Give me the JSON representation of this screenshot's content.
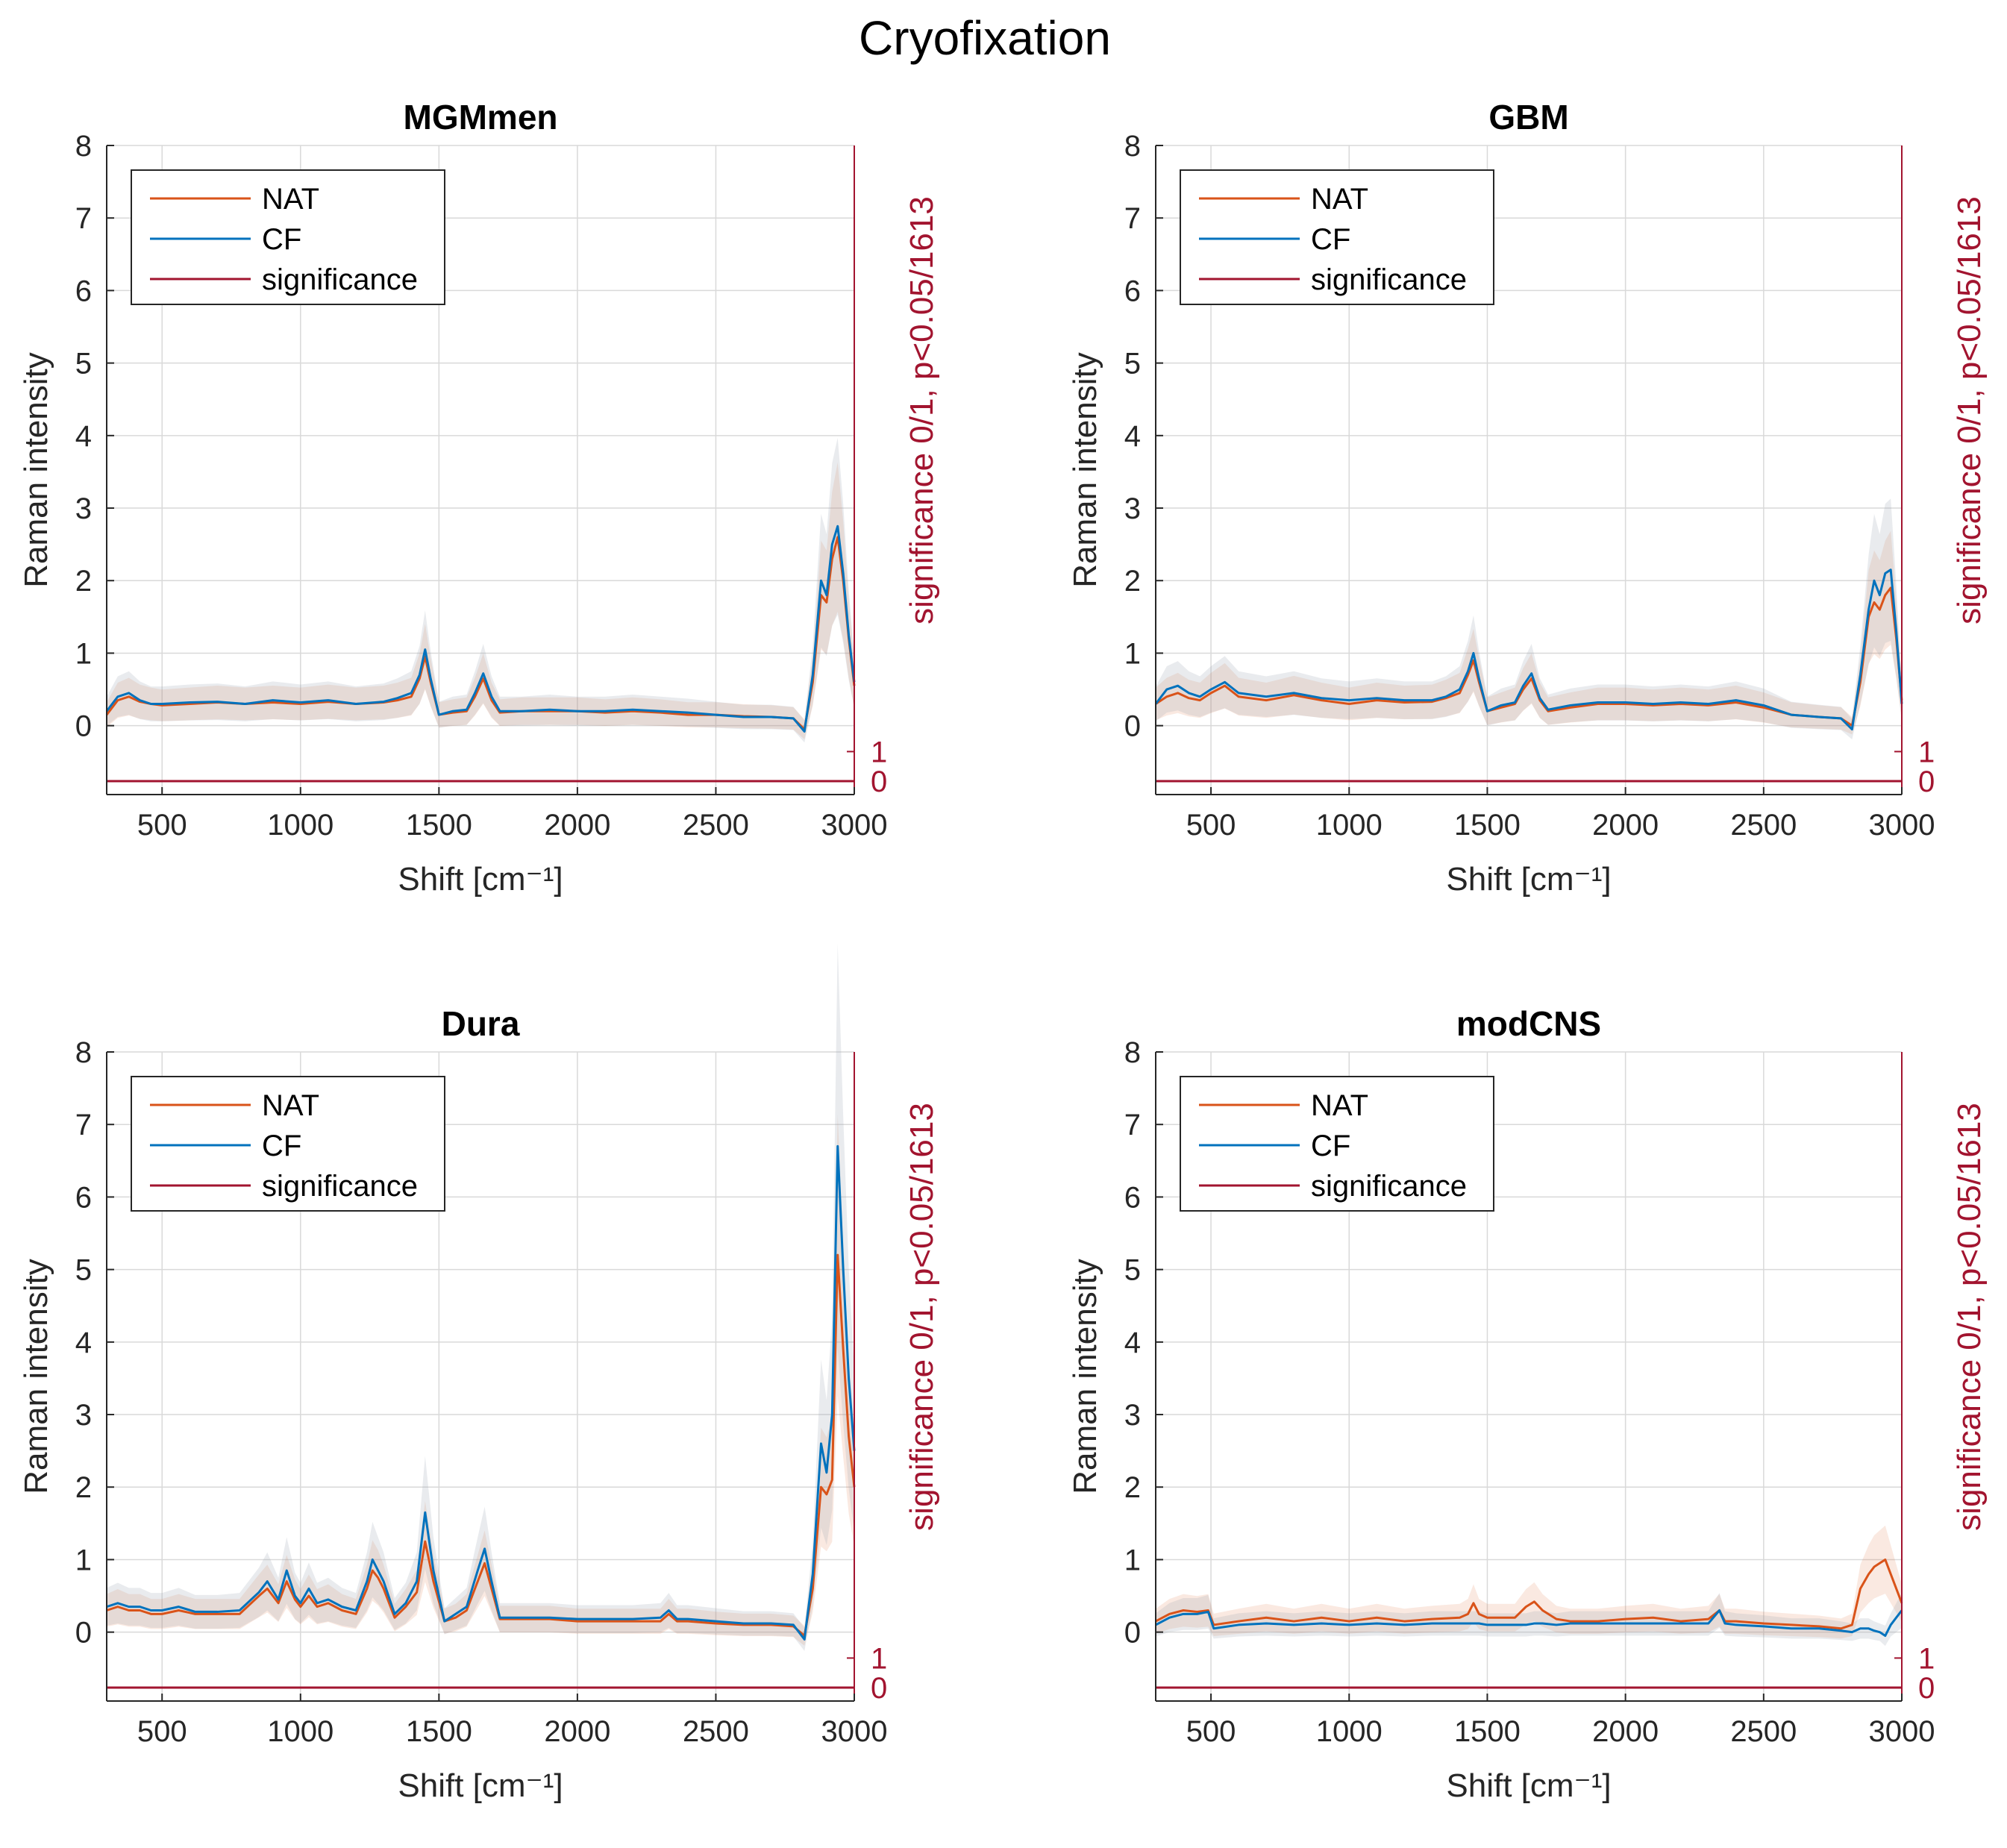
{
  "figure": {
    "title": "Cryofixation",
    "colors": {
      "nat": "#d95319",
      "cf": "#0072bd",
      "significance": "#a2142f",
      "band": "#9aa5b1"
    }
  },
  "chart_data": [
    {
      "type": "line",
      "title": "MGMmen",
      "xlabel": "Shift [cm⁻¹]",
      "ylabel": "Raman intensity",
      "y2label": "significance 0/1, p<0.05/1613",
      "xlim": [
        300,
        3000
      ],
      "ylim": [
        -0.95,
        8
      ],
      "xticks": [
        500,
        1000,
        1500,
        2000,
        2500,
        3000
      ],
      "yticks": [
        0,
        1,
        2,
        3,
        4,
        5,
        6,
        7,
        8
      ],
      "y2ticks": [
        0,
        1
      ],
      "legend": [
        "NAT",
        "CF",
        "significance"
      ],
      "legend_position": "top-left",
      "grid": true,
      "x": [
        300,
        340,
        380,
        420,
        460,
        500,
        600,
        700,
        800,
        900,
        1000,
        1100,
        1200,
        1300,
        1350,
        1400,
        1430,
        1450,
        1470,
        1500,
        1550,
        1600,
        1630,
        1660,
        1690,
        1720,
        1800,
        1900,
        2000,
        2100,
        2200,
        2300,
        2400,
        2500,
        2600,
        2700,
        2780,
        2820,
        2850,
        2880,
        2900,
        2920,
        2940,
        2960,
        2980,
        3000
      ],
      "series": [
        {
          "name": "NAT",
          "values": [
            0.15,
            0.35,
            0.4,
            0.33,
            0.3,
            0.28,
            0.3,
            0.32,
            0.3,
            0.32,
            0.3,
            0.33,
            0.3,
            0.32,
            0.35,
            0.4,
            0.65,
            0.95,
            0.6,
            0.15,
            0.18,
            0.2,
            0.4,
            0.65,
            0.35,
            0.18,
            0.2,
            0.2,
            0.2,
            0.18,
            0.2,
            0.18,
            0.15,
            0.15,
            0.13,
            0.12,
            0.1,
            -0.05,
            0.6,
            1.8,
            1.7,
            2.3,
            2.6,
            2.0,
            1.2,
            0.55
          ]
        },
        {
          "name": "CF",
          "values": [
            0.2,
            0.4,
            0.45,
            0.35,
            0.3,
            0.3,
            0.32,
            0.33,
            0.3,
            0.35,
            0.32,
            0.35,
            0.3,
            0.33,
            0.38,
            0.45,
            0.7,
            1.05,
            0.65,
            0.15,
            0.2,
            0.22,
            0.45,
            0.72,
            0.4,
            0.2,
            0.2,
            0.22,
            0.2,
            0.2,
            0.22,
            0.2,
            0.18,
            0.15,
            0.12,
            0.12,
            0.1,
            -0.08,
            0.7,
            2.0,
            1.8,
            2.5,
            2.75,
            2.1,
            1.25,
            0.6
          ]
        }
      ],
      "significance": 0
    },
    {
      "type": "line",
      "title": "GBM",
      "xlabel": "Shift [cm⁻¹]",
      "ylabel": "Raman intensity",
      "y2label": "significance 0/1, p<0.05/1613",
      "xlim": [
        300,
        3000
      ],
      "ylim": [
        -0.95,
        8
      ],
      "xticks": [
        500,
        1000,
        1500,
        2000,
        2500,
        3000
      ],
      "yticks": [
        0,
        1,
        2,
        3,
        4,
        5,
        6,
        7,
        8
      ],
      "y2ticks": [
        0,
        1
      ],
      "legend": [
        "NAT",
        "CF",
        "significance"
      ],
      "legend_position": "top-left",
      "grid": true,
      "x": [
        300,
        340,
        380,
        420,
        460,
        500,
        550,
        600,
        700,
        800,
        900,
        1000,
        1100,
        1200,
        1300,
        1350,
        1400,
        1430,
        1450,
        1470,
        1500,
        1550,
        1600,
        1630,
        1660,
        1690,
        1720,
        1800,
        1900,
        2000,
        2100,
        2200,
        2300,
        2400,
        2500,
        2600,
        2700,
        2780,
        2820,
        2850,
        2880,
        2900,
        2920,
        2940,
        2960,
        2980,
        3000
      ],
      "series": [
        {
          "name": "NAT",
          "values": [
            0.3,
            0.4,
            0.45,
            0.38,
            0.35,
            0.45,
            0.55,
            0.4,
            0.35,
            0.42,
            0.35,
            0.3,
            0.35,
            0.32,
            0.33,
            0.38,
            0.45,
            0.7,
            0.9,
            0.6,
            0.2,
            0.25,
            0.3,
            0.5,
            0.65,
            0.35,
            0.2,
            0.25,
            0.3,
            0.3,
            0.28,
            0.3,
            0.28,
            0.32,
            0.25,
            0.15,
            0.12,
            0.1,
            0.0,
            0.6,
            1.5,
            1.7,
            1.6,
            1.8,
            1.9,
            1.2,
            0.35
          ]
        },
        {
          "name": "CF",
          "values": [
            0.3,
            0.5,
            0.55,
            0.45,
            0.4,
            0.5,
            0.6,
            0.45,
            0.4,
            0.45,
            0.38,
            0.35,
            0.38,
            0.35,
            0.35,
            0.4,
            0.5,
            0.75,
            1.0,
            0.65,
            0.2,
            0.28,
            0.32,
            0.55,
            0.72,
            0.38,
            0.22,
            0.28,
            0.32,
            0.32,
            0.3,
            0.32,
            0.3,
            0.35,
            0.28,
            0.15,
            0.12,
            0.1,
            -0.05,
            0.7,
            1.6,
            2.0,
            1.8,
            2.1,
            2.15,
            1.3,
            0.3
          ]
        }
      ],
      "significance": 0
    },
    {
      "type": "line",
      "title": "Dura",
      "xlabel": "Shift [cm⁻¹]",
      "ylabel": "Raman intensity",
      "y2label": "significance 0/1, p<0.05/1613",
      "xlim": [
        300,
        3000
      ],
      "ylim": [
        -0.95,
        8
      ],
      "xticks": [
        500,
        1000,
        1500,
        2000,
        2500,
        3000
      ],
      "yticks": [
        0,
        1,
        2,
        3,
        4,
        5,
        6,
        7,
        8
      ],
      "y2ticks": [
        0,
        1
      ],
      "legend": [
        "NAT",
        "CF",
        "significance"
      ],
      "legend_position": "top-left",
      "grid": true,
      "x": [
        300,
        340,
        380,
        420,
        460,
        500,
        560,
        620,
        700,
        780,
        850,
        880,
        920,
        950,
        980,
        1000,
        1030,
        1060,
        1100,
        1150,
        1200,
        1240,
        1260,
        1280,
        1300,
        1340,
        1380,
        1420,
        1450,
        1480,
        1520,
        1560,
        1600,
        1640,
        1665,
        1690,
        1720,
        1800,
        1900,
        2000,
        2100,
        2200,
        2300,
        2330,
        2360,
        2400,
        2500,
        2600,
        2700,
        2780,
        2820,
        2850,
        2880,
        2900,
        2920,
        2940,
        2960,
        2980,
        3000
      ],
      "series": [
        {
          "name": "NAT",
          "values": [
            0.3,
            0.35,
            0.3,
            0.3,
            0.25,
            0.25,
            0.3,
            0.25,
            0.25,
            0.25,
            0.5,
            0.6,
            0.4,
            0.7,
            0.45,
            0.35,
            0.5,
            0.35,
            0.4,
            0.3,
            0.25,
            0.6,
            0.85,
            0.75,
            0.6,
            0.2,
            0.35,
            0.55,
            1.25,
            0.7,
            0.15,
            0.2,
            0.3,
            0.7,
            0.95,
            0.6,
            0.18,
            0.18,
            0.18,
            0.15,
            0.15,
            0.15,
            0.15,
            0.25,
            0.15,
            0.15,
            0.12,
            0.1,
            0.1,
            0.08,
            -0.05,
            0.6,
            2.0,
            1.9,
            2.1,
            5.2,
            3.9,
            2.7,
            2.0
          ]
        },
        {
          "name": "CF",
          "values": [
            0.35,
            0.4,
            0.35,
            0.35,
            0.3,
            0.3,
            0.35,
            0.28,
            0.28,
            0.3,
            0.55,
            0.7,
            0.45,
            0.85,
            0.5,
            0.4,
            0.6,
            0.4,
            0.45,
            0.35,
            0.3,
            0.7,
            1.0,
            0.85,
            0.7,
            0.25,
            0.4,
            0.7,
            1.65,
            0.85,
            0.15,
            0.25,
            0.35,
            0.85,
            1.15,
            0.7,
            0.2,
            0.2,
            0.2,
            0.18,
            0.18,
            0.18,
            0.2,
            0.3,
            0.18,
            0.18,
            0.15,
            0.12,
            0.12,
            0.1,
            -0.1,
            0.8,
            2.6,
            2.2,
            3.0,
            6.7,
            5.0,
            3.5,
            2.5
          ]
        }
      ],
      "significance": 0
    },
    {
      "type": "line",
      "title": "modCNS",
      "xlabel": "Shift [cm⁻¹]",
      "ylabel": "Raman intensity",
      "y2label": "significance 0/1, p<0.05/1613",
      "xlim": [
        300,
        3000
      ],
      "ylim": [
        -0.95,
        8
      ],
      "xticks": [
        500,
        1000,
        1500,
        2000,
        2500,
        3000
      ],
      "yticks": [
        0,
        1,
        2,
        3,
        4,
        5,
        6,
        7,
        8
      ],
      "y2ticks": [
        0,
        1
      ],
      "legend": [
        "NAT",
        "CF",
        "significance"
      ],
      "legend_position": "top-left",
      "grid": true,
      "x": [
        300,
        350,
        400,
        450,
        490,
        510,
        600,
        700,
        800,
        900,
        1000,
        1100,
        1200,
        1300,
        1400,
        1430,
        1450,
        1470,
        1500,
        1600,
        1640,
        1670,
        1700,
        1750,
        1800,
        1900,
        2000,
        2100,
        2200,
        2300,
        2340,
        2360,
        2400,
        2500,
        2600,
        2700,
        2780,
        2820,
        2850,
        2880,
        2900,
        2920,
        2940,
        2960,
        2980,
        3000
      ],
      "series": [
        {
          "name": "NAT",
          "values": [
            0.15,
            0.25,
            0.3,
            0.28,
            0.3,
            0.1,
            0.15,
            0.2,
            0.15,
            0.2,
            0.15,
            0.2,
            0.15,
            0.18,
            0.2,
            0.25,
            0.4,
            0.25,
            0.2,
            0.2,
            0.35,
            0.42,
            0.3,
            0.18,
            0.15,
            0.15,
            0.18,
            0.2,
            0.15,
            0.18,
            0.3,
            0.15,
            0.15,
            0.12,
            0.1,
            0.08,
            0.05,
            0.1,
            0.6,
            0.8,
            0.9,
            0.95,
            1.0,
            0.8,
            0.6,
            0.4
          ]
        },
        {
          "name": "CF",
          "values": [
            0.1,
            0.2,
            0.25,
            0.25,
            0.28,
            0.05,
            0.1,
            0.12,
            0.1,
            0.12,
            0.1,
            0.12,
            0.1,
            0.12,
            0.12,
            0.12,
            0.12,
            0.12,
            0.1,
            0.1,
            0.1,
            0.12,
            0.12,
            0.1,
            0.12,
            0.12,
            0.12,
            0.12,
            0.12,
            0.12,
            0.3,
            0.12,
            0.1,
            0.08,
            0.05,
            0.05,
            0.02,
            0.0,
            0.05,
            0.05,
            0.02,
            0.0,
            -0.05,
            0.1,
            0.2,
            0.3
          ]
        }
      ],
      "significance": 0
    }
  ]
}
